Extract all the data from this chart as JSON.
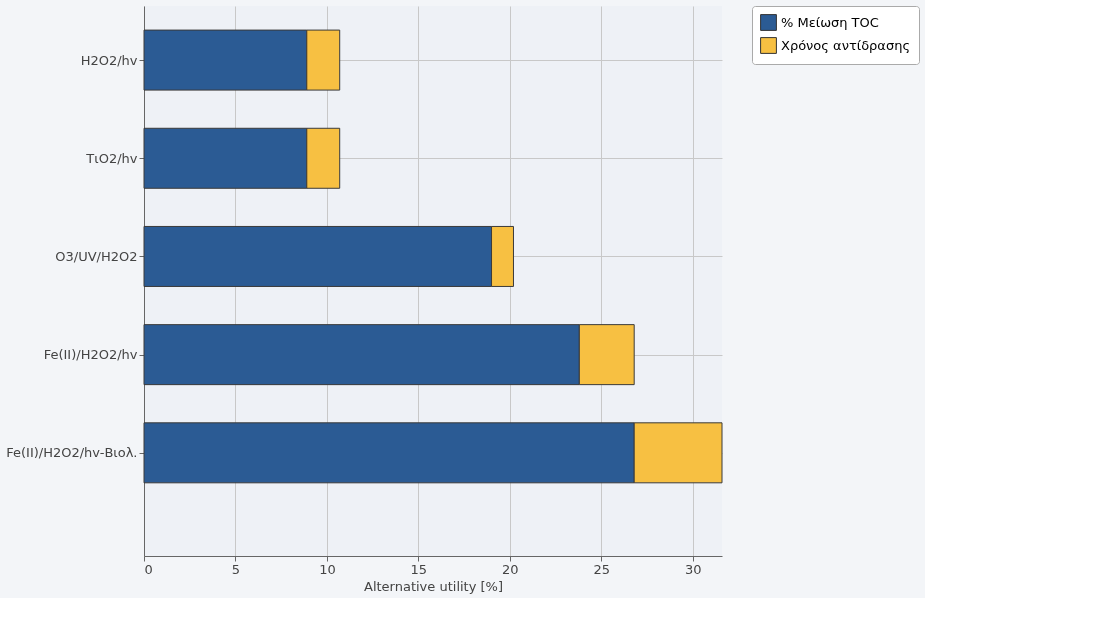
{
  "chart_data": {
    "type": "bar",
    "orientation": "horizontal",
    "stacked": true,
    "xlabel": "Alternative utility [%]",
    "categories": [
      "H2O2/hv",
      "TιO2/hv",
      "O3/UV/H2O2",
      "Fe(II)/H2O2/hv",
      "Fe(II)/H2O2/hv-Βιολ."
    ],
    "series": [
      {
        "name": "% Μείωση TOC",
        "color": "#2b5b94",
        "values": [
          8.9,
          8.9,
          19.0,
          23.8,
          26.8
        ]
      },
      {
        "name": "Χρόνος αντίδρασης",
        "color": "#f7c042",
        "values": [
          1.8,
          1.8,
          1.2,
          3.0,
          4.8
        ]
      }
    ],
    "xlim": [
      0,
      31.6
    ],
    "xticks": [
      0,
      5,
      10,
      15,
      20,
      25,
      30
    ],
    "grid": true,
    "legend": "top right"
  }
}
